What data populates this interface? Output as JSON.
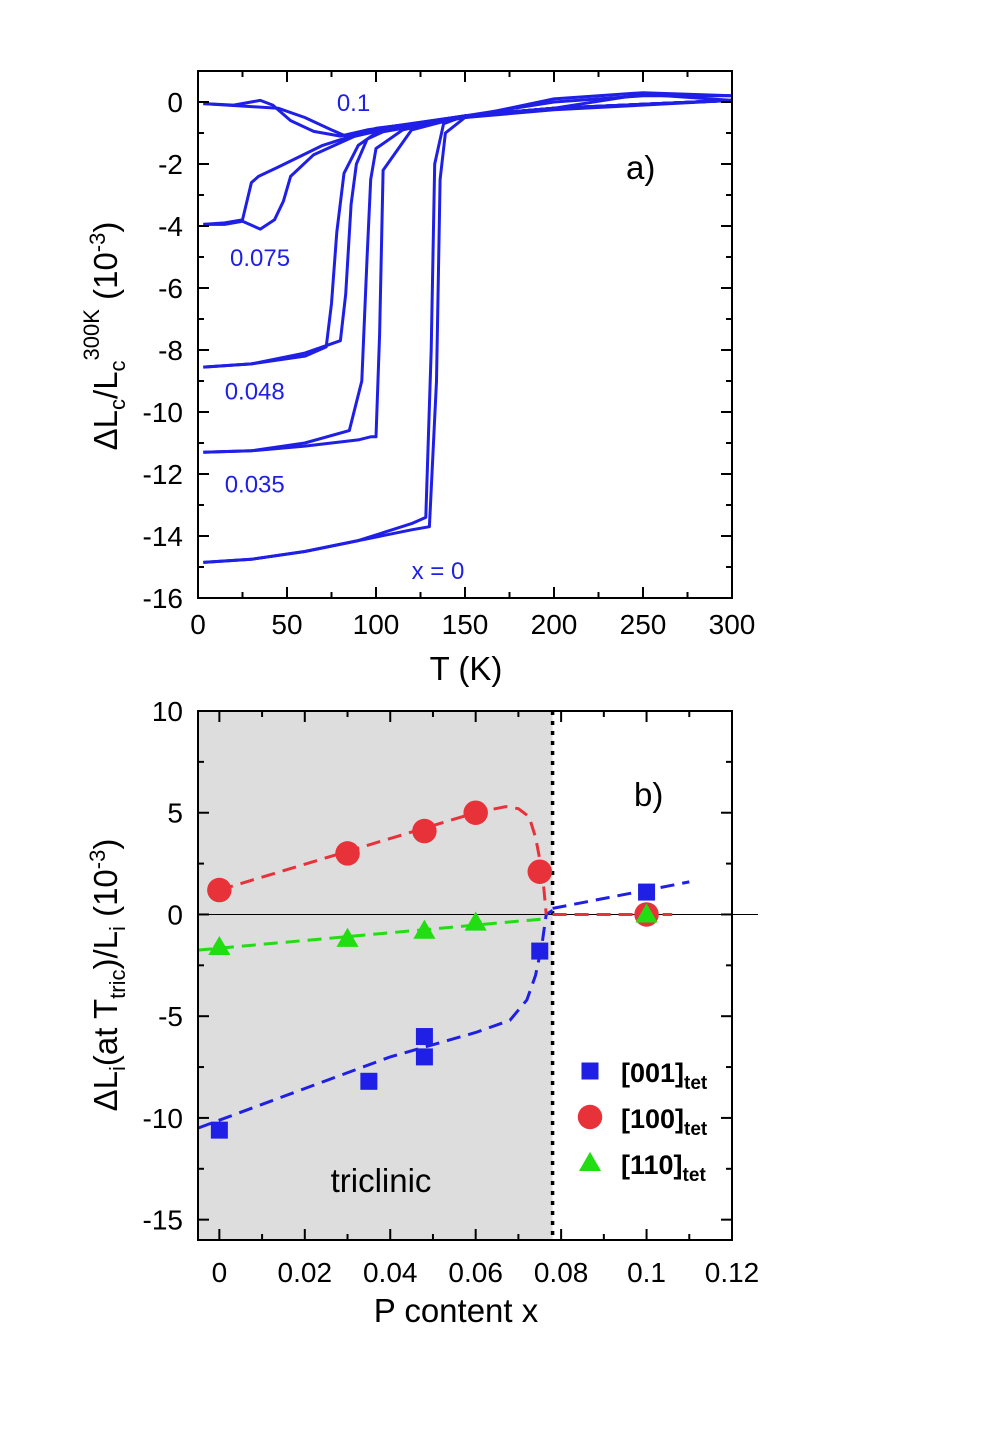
{
  "colors": {
    "blue": "#1f1fe6",
    "red": "#e8323a",
    "green": "#22dd11",
    "shade": "#dddddd",
    "axis": "#000000"
  },
  "chart_data": [
    {
      "type": "line",
      "panel_label": "a)",
      "xlabel": "T (K)",
      "ylabel": {
        "lead": "ΔL",
        "sub1": "c",
        "mid": "/L",
        "sub2": "c",
        "sup2": "300K",
        "unitOpen": " (10",
        "unitSup": "-3",
        "unitClose": ")"
      },
      "xlim": [
        0,
        300
      ],
      "ylim": [
        -16,
        1
      ],
      "xticks": [
        0,
        50,
        100,
        150,
        200,
        250,
        300
      ],
      "yticks": [
        0,
        -2,
        -4,
        -6,
        -8,
        -10,
        -12,
        -14,
        -16
      ],
      "curve_labels": [
        {
          "text": "0.1",
          "x": 78,
          "y": 0
        },
        {
          "text": "0.075",
          "x": 18,
          "y": -5
        },
        {
          "text": "0.048",
          "x": 15,
          "y": -9.3
        },
        {
          "text": "0.035",
          "x": 15,
          "y": -12.3
        },
        {
          "text": "x = 0",
          "x": 120,
          "y": -15.1
        }
      ],
      "series": [
        {
          "label": "0.1",
          "x": [
            3,
            30,
            45,
            60,
            75,
            85,
            100,
            150,
            200,
            250,
            300
          ],
          "y": [
            -0.05,
            -0.15,
            -0.2,
            -0.5,
            -0.9,
            -1.15,
            -0.95,
            -0.45,
            -0.2,
            0.25,
            0.05
          ]
        },
        {
          "label": "0.1",
          "x": [
            3,
            20,
            35,
            42,
            52,
            65,
            80,
            95,
            150,
            200,
            300
          ],
          "y": [
            -0.05,
            -0.1,
            0.05,
            -0.1,
            -0.6,
            -0.95,
            -1.1,
            -0.9,
            -0.45,
            -0.2,
            0.05
          ]
        },
        {
          "label": "0.075",
          "x": [
            3,
            15,
            25,
            30,
            34,
            45,
            70,
            100,
            150,
            200,
            300
          ],
          "y": [
            -3.95,
            -3.9,
            -3.8,
            -2.6,
            -2.4,
            -2.1,
            -1.4,
            -0.85,
            -0.5,
            -0.25,
            0.05
          ]
        },
        {
          "label": "0.075",
          "x": [
            3,
            15,
            25,
            35,
            43,
            48,
            52,
            65,
            90,
            120,
            150,
            200,
            300
          ],
          "y": [
            -3.95,
            -3.95,
            -3.85,
            -4.1,
            -3.8,
            -3.2,
            -2.4,
            -1.7,
            -1.05,
            -0.7,
            -0.45,
            -0.2,
            0.05
          ]
        },
        {
          "label": "0.048",
          "x": [
            3,
            30,
            60,
            72,
            75,
            78,
            82,
            90,
            100,
            150,
            200,
            300
          ],
          "y": [
            -8.55,
            -8.45,
            -8.2,
            -7.9,
            -6.5,
            -4.2,
            -2.3,
            -1.4,
            -1.0,
            -0.5,
            -0.2,
            0.05
          ]
        },
        {
          "label": "0.048",
          "x": [
            3,
            30,
            60,
            80,
            83,
            86,
            89,
            95,
            110,
            150,
            200,
            300
          ],
          "y": [
            -8.55,
            -8.45,
            -8.1,
            -7.7,
            -6.2,
            -3.3,
            -2.0,
            -1.2,
            -0.8,
            -0.45,
            -0.2,
            0.05
          ]
        },
        {
          "label": "0.035",
          "x": [
            3,
            30,
            60,
            85,
            92,
            95,
            97,
            100,
            115,
            150,
            200,
            300
          ],
          "y": [
            -11.3,
            -11.25,
            -11.0,
            -10.6,
            -9.0,
            -5.0,
            -2.5,
            -1.5,
            -0.9,
            -0.45,
            -0.2,
            0.05
          ]
        },
        {
          "label": "0.035",
          "x": [
            3,
            30,
            60,
            90,
            97,
            100,
            102,
            104,
            120,
            150,
            200,
            300
          ],
          "y": [
            -11.3,
            -11.25,
            -11.1,
            -10.9,
            -10.8,
            -10.8,
            -7.5,
            -2.2,
            -0.9,
            -0.45,
            -0.2,
            0.05
          ]
        },
        {
          "label": "x = 0",
          "x": [
            3,
            30,
            60,
            90,
            120,
            130,
            134,
            136,
            139,
            150,
            200,
            250,
            300
          ],
          "y": [
            -14.85,
            -14.75,
            -14.5,
            -14.15,
            -13.8,
            -13.7,
            -9.0,
            -2.5,
            -1.0,
            -0.5,
            0.1,
            0.3,
            0.2
          ]
        },
        {
          "label": "x = 0",
          "x": [
            3,
            30,
            60,
            90,
            120,
            128,
            131,
            133,
            138,
            150,
            200,
            250,
            300
          ],
          "y": [
            -14.85,
            -14.75,
            -14.5,
            -14.15,
            -13.6,
            -13.4,
            -8.0,
            -2.0,
            -0.7,
            -0.45,
            0.0,
            0.2,
            0.2
          ]
        }
      ]
    },
    {
      "type": "scatter",
      "panel_label": "b)",
      "xlabel": "P content x",
      "ylabel": {
        "lead": "ΔL",
        "sub1": "i",
        "mid": "(at T",
        "sub2": "tric",
        "mid2": ")/L",
        "sub3": "i",
        "unitOpen": " (10",
        "unitSup": "-3",
        "unitClose": ")"
      },
      "xlim": [
        -0.005,
        0.12
      ],
      "ylim": [
        -16,
        10
      ],
      "xticks": [
        0,
        0.02,
        0.04,
        0.06,
        0.08,
        0.1,
        0.12
      ],
      "xtick_labels": [
        "0",
        "0.02",
        "0.04",
        "0.06",
        "0.08",
        "0.1",
        "0.12"
      ],
      "yticks": [
        10,
        5,
        0,
        -5,
        -10,
        -15
      ],
      "region_label": "triclinic",
      "phase_boundary_x": 0.078,
      "series": [
        {
          "name": "[001]",
          "name_sub": "tet",
          "marker": "square",
          "color": "#1f1fe6",
          "x": [
            0,
            0.035,
            0.048,
            0.048,
            0.075,
            0.1
          ],
          "y": [
            -10.6,
            -8.2,
            -6.0,
            -7.0,
            -1.8,
            1.1
          ]
        },
        {
          "name": "[100]",
          "name_sub": "tet",
          "marker": "circle",
          "color": "#e8323a",
          "x": [
            0,
            0.03,
            0.048,
            0.06,
            0.075,
            0.1
          ],
          "y": [
            1.2,
            3.0,
            4.1,
            5.0,
            2.1,
            0.0
          ]
        },
        {
          "name": "[110]",
          "name_sub": "tet",
          "marker": "triangle",
          "color": "#22dd11",
          "x": [
            0,
            0.03,
            0.048,
            0.06,
            0.1
          ],
          "y": [
            -1.6,
            -1.2,
            -0.8,
            -0.4,
            0.0
          ]
        }
      ],
      "guide_lines": [
        {
          "series": "[001]",
          "color": "#1f1fe6",
          "x": [
            -0.005,
            0.04,
            0.06,
            0.068,
            0.072,
            0.074,
            0.0755,
            0.0765,
            0.078
          ],
          "y": [
            -10.5,
            -7.0,
            -5.8,
            -5.2,
            -4.2,
            -3.0,
            -1.5,
            0.0,
            0.2
          ]
        },
        {
          "series": "[001]",
          "color": "#1f1fe6",
          "x": [
            0.078,
            0.11
          ],
          "y": [
            0.3,
            1.6
          ]
        },
        {
          "series": "[100]",
          "color": "#e8323a",
          "x": [
            0,
            0.06,
            0.067,
            0.07,
            0.0725,
            0.074,
            0.0752,
            0.076,
            0.0765
          ],
          "y": [
            1.2,
            5.0,
            5.3,
            5.2,
            4.8,
            3.8,
            2.5,
            1.2,
            0.0
          ]
        },
        {
          "series": "[100]",
          "color": "#e8323a",
          "x": [
            0.078,
            0.106
          ],
          "y": [
            0.0,
            0.0
          ]
        },
        {
          "series": "[110]",
          "color": "#22dd11",
          "x": [
            -0.005,
            0.077
          ],
          "y": [
            -1.75,
            -0.2
          ]
        }
      ]
    }
  ]
}
